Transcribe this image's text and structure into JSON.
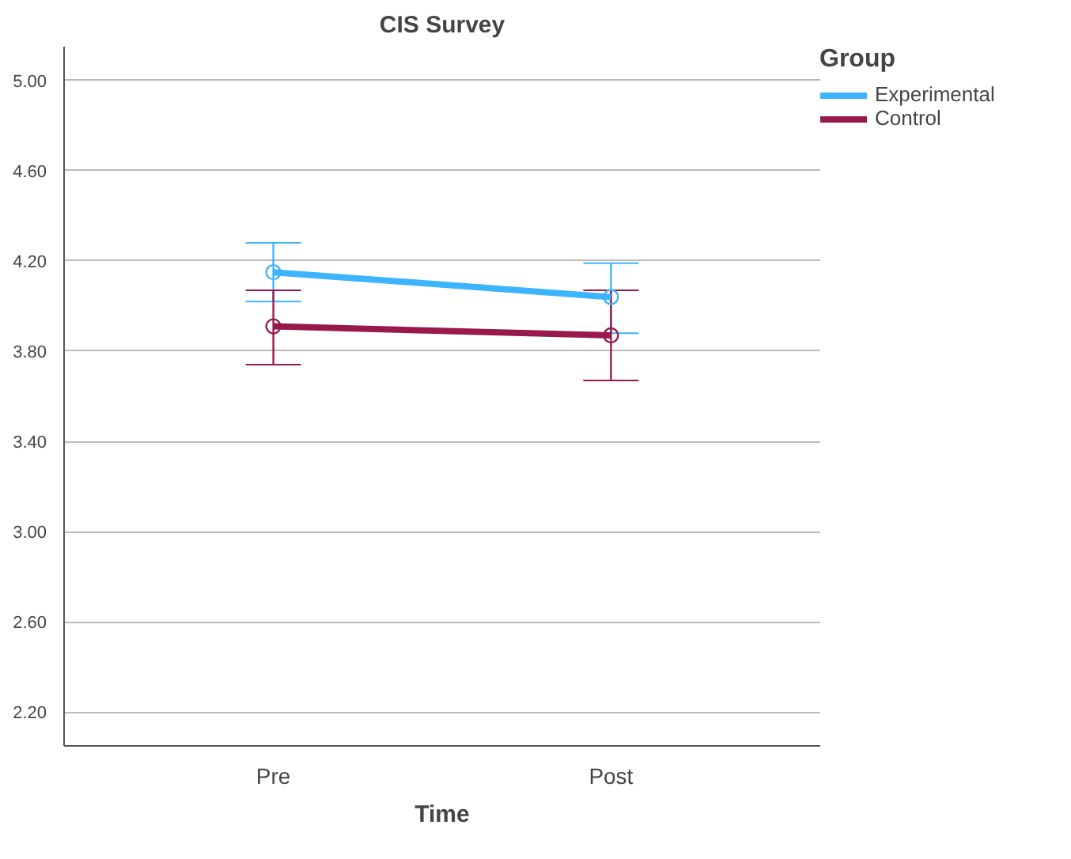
{
  "chart_data": {
    "type": "line",
    "title": "CIS Survey",
    "xlabel": "Time",
    "legend_title": "Group",
    "categories": [
      "Pre",
      "Post"
    ],
    "series": [
      {
        "name": "Experimental",
        "color": "#3cb4ff",
        "values": [
          4.15,
          4.04
        ],
        "errors": [
          [
            4.02,
            4.28
          ],
          [
            3.88,
            4.19
          ]
        ]
      },
      {
        "name": "Control",
        "color": "#99194d",
        "values": [
          3.91,
          3.87
        ],
        "errors": [
          [
            3.74,
            4.07
          ],
          [
            3.67,
            4.07
          ]
        ]
      }
    ],
    "ylim": [
      2.05,
      5.15
    ],
    "yticks": [
      {
        "value": 2.2,
        "label": "2.20"
      },
      {
        "value": 2.6,
        "label": "2.60"
      },
      {
        "value": 3.0,
        "label": "3.00"
      },
      {
        "value": 3.4,
        "label": "3.40"
      },
      {
        "value": 3.8,
        "label": "3.80"
      },
      {
        "value": 4.2,
        "label": "4.20"
      },
      {
        "value": 4.6,
        "label": "4.60"
      },
      {
        "value": 5.0,
        "label": "5.00"
      }
    ],
    "grid": "y",
    "legend": "top right",
    "marker": "circle",
    "line_style": "solid"
  }
}
